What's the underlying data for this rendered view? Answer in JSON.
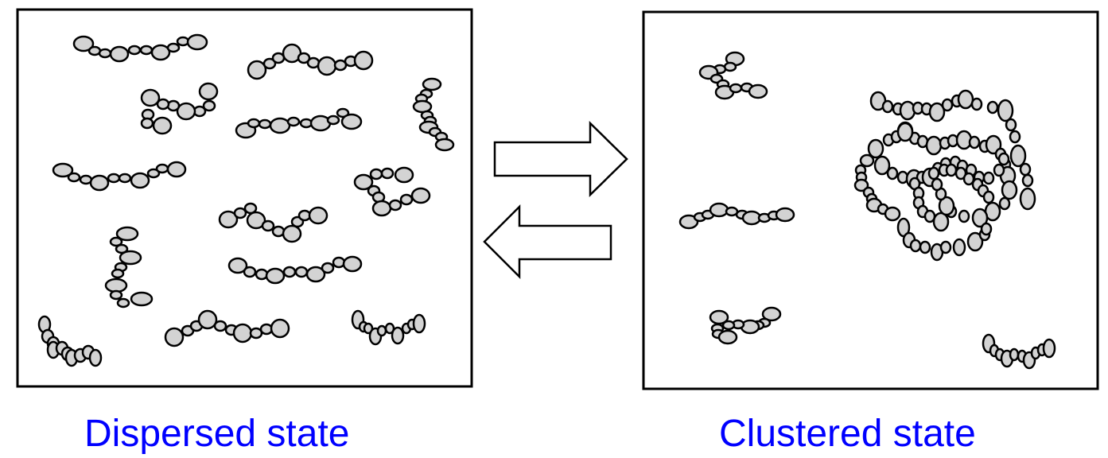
{
  "left_panel": {
    "caption": "Dispersed state",
    "caption_color": "#0000ff"
  },
  "right_panel": {
    "caption": "Clustered state",
    "caption_color": "#0000ff"
  },
  "arrows": {
    "forward": "right-arrow-icon",
    "reverse": "left-arrow-icon"
  },
  "colors": {
    "bead_fill": "#d3d3d3",
    "bead_stroke": "#000000",
    "frame_stroke": "#000000",
    "arrow_fill": "#ffffff"
  }
}
